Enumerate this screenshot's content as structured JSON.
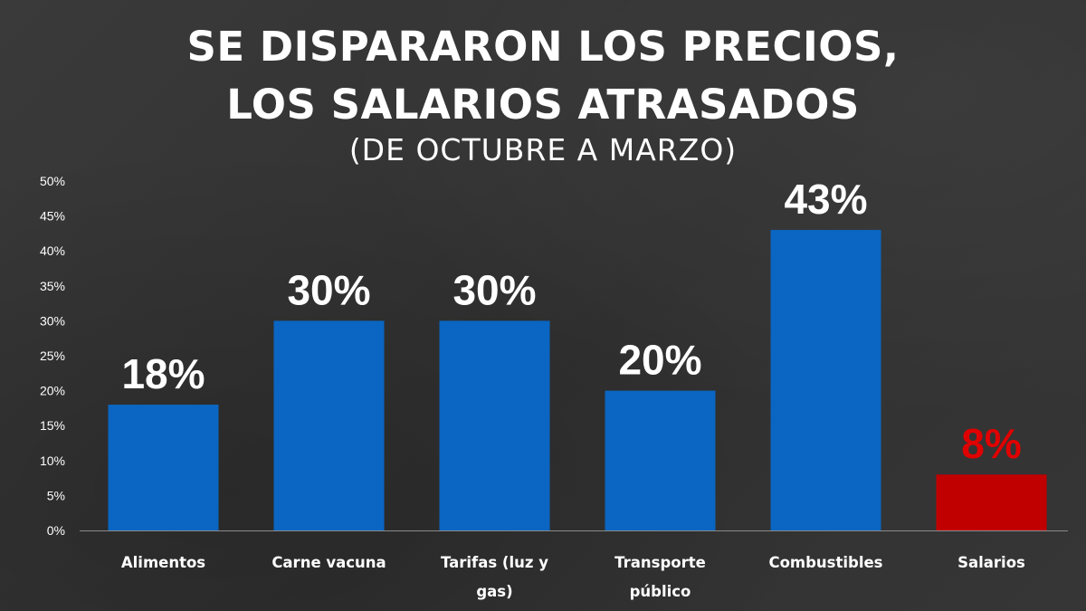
{
  "chart_data": {
    "type": "bar",
    "title": [
      "SE DISPARARON LOS PRECIOS,",
      "LOS SALARIOS ATRASADOS"
    ],
    "subtitle": "(DE OCTUBRE A MARZO)",
    "categories": [
      [
        "Alimentos"
      ],
      [
        "Carne vacuna"
      ],
      [
        "Tarifas (luz y",
        "gas)"
      ],
      [
        "Transporte",
        "público"
      ],
      [
        "Combustibles"
      ],
      [
        "Salarios"
      ]
    ],
    "values": [
      18,
      30,
      30,
      20,
      43,
      8
    ],
    "data_labels": [
      "18%",
      "30%",
      "30%",
      "20%",
      "43%",
      "8%"
    ],
    "bar_colors": [
      "#0a66c2",
      "#0a66c2",
      "#0a66c2",
      "#0a66c2",
      "#0a66c2",
      "#c00000"
    ],
    "label_colors": [
      "#ffffff",
      "#ffffff",
      "#ffffff",
      "#ffffff",
      "#ffffff",
      "#e00000"
    ],
    "ylim": [
      0,
      50
    ],
    "yticks": [
      0,
      5,
      10,
      15,
      20,
      25,
      30,
      35,
      40,
      45,
      50
    ],
    "ytick_labels": [
      "0%",
      "5%",
      "10%",
      "15%",
      "20%",
      "25%",
      "30%",
      "35%",
      "40%",
      "45%",
      "50%"
    ],
    "xlabel": "",
    "ylabel": "",
    "grid": false,
    "legend": false
  }
}
